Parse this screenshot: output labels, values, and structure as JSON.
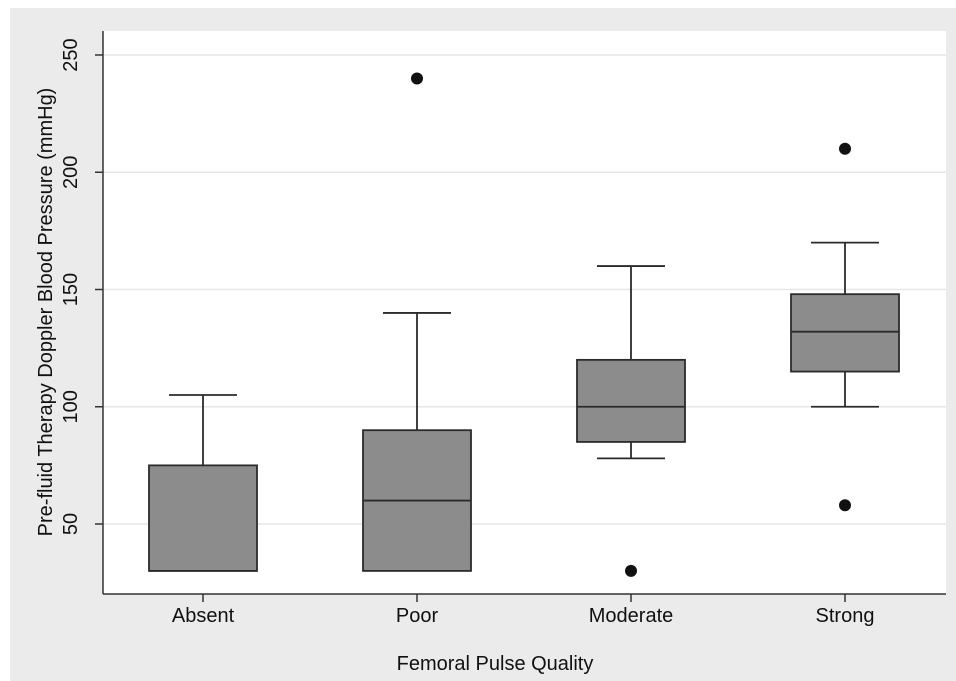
{
  "chart_data": {
    "type": "boxplot",
    "xlabel": "Femoral Pulse Quality",
    "ylabel": "Pre-fluid Therapy Doppler Blood Pressure (mmHg)",
    "categories": [
      "Absent",
      "Poor",
      "Moderate",
      "Strong"
    ],
    "ylim": [
      20,
      260
    ],
    "yticks": [
      50,
      100,
      150,
      200,
      250
    ],
    "grid": true,
    "boxes": [
      {
        "category": "Absent",
        "whisker_low": 30,
        "q1": 30,
        "median": 30,
        "q3": 75,
        "whisker_high": 105,
        "outliers": []
      },
      {
        "category": "Poor",
        "whisker_low": 30,
        "q1": 30,
        "median": 60,
        "q3": 90,
        "whisker_high": 140,
        "outliers": [
          240
        ]
      },
      {
        "category": "Moderate",
        "whisker_low": 78,
        "q1": 85,
        "median": 100,
        "q3": 120,
        "whisker_high": 160,
        "outliers": [
          30
        ]
      },
      {
        "category": "Strong",
        "whisker_low": 100,
        "q1": 115,
        "median": 132,
        "q3": 148,
        "whisker_high": 170,
        "outliers": [
          210,
          58
        ]
      }
    ]
  },
  "colors": {
    "frame_background": "#ebebeb",
    "plot_background": "#ffffff",
    "grid": "#e6e6e6",
    "box_fill": "#8c8c8c",
    "box_stroke": "#2b2b2b",
    "marker": "#111111",
    "axis": "#333333"
  }
}
